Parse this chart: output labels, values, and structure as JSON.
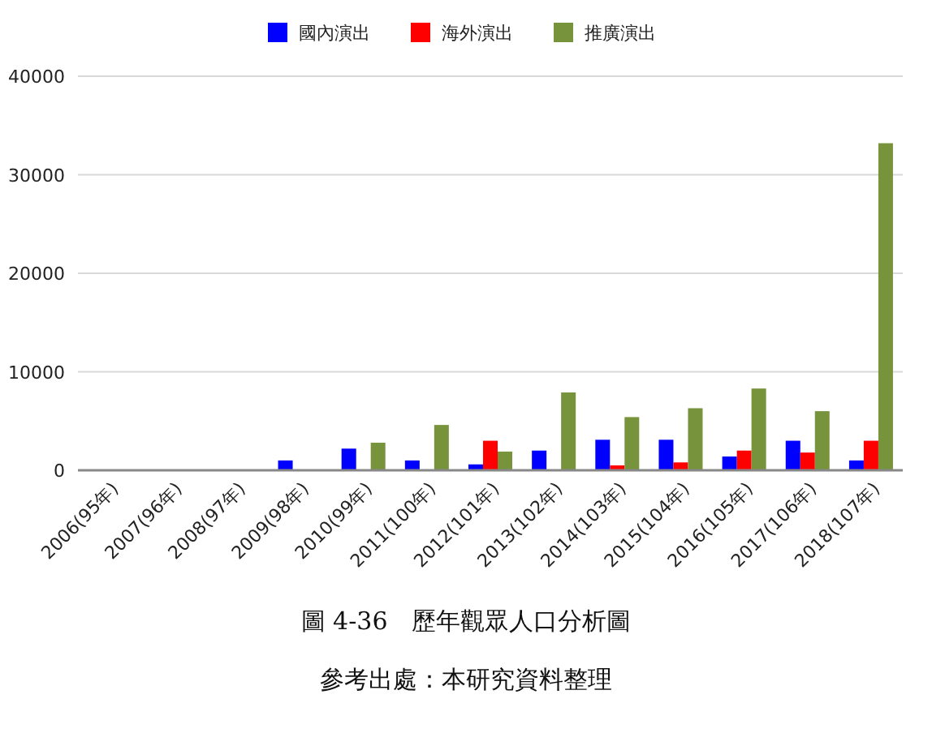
{
  "chart_data": {
    "type": "bar",
    "title": "圖 4-36　歷年觀眾人口分析圖",
    "annotations": [
      "參考出處：本研究資料整理"
    ],
    "categories": [
      "2006(95年)",
      "2007(96年)",
      "2008(97年)",
      "2009(98年)",
      "2010(99年)",
      "2011(100年)",
      "2012(101年)",
      "2013(102年)",
      "2014(103年)",
      "2015(104年)",
      "2016(105年)",
      "2017(106年)",
      "2018(107年)"
    ],
    "series": [
      {
        "name": "國內演出",
        "color": "#0000ff",
        "values": [
          0,
          0,
          0,
          1000,
          2200,
          1000,
          600,
          2000,
          3100,
          3100,
          1400,
          3000,
          1000
        ]
      },
      {
        "name": "海外演出",
        "color": "#ff0000",
        "values": [
          0,
          0,
          0,
          0,
          0,
          0,
          3000,
          0,
          500,
          800,
          2000,
          1800,
          3000
        ]
      },
      {
        "name": "推廣演出",
        "color": "#77933c",
        "values": [
          0,
          0,
          0,
          0,
          2800,
          4600,
          1900,
          7900,
          5400,
          6300,
          8300,
          6000,
          33200
        ]
      }
    ],
    "ylim": [
      0,
      40000
    ],
    "yticks": [
      0,
      10000,
      20000,
      30000,
      40000
    ],
    "grid": "y",
    "legend": "top"
  }
}
